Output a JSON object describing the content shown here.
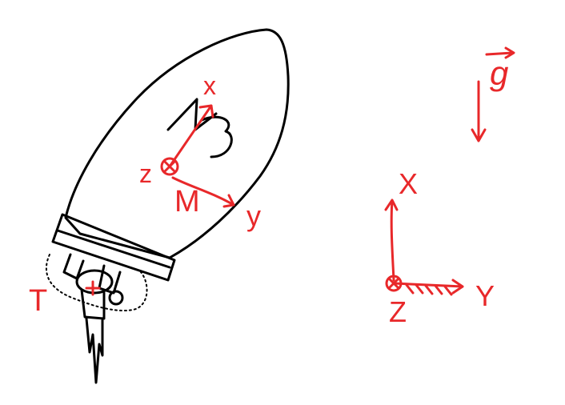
{
  "body_frame": {
    "x_label": "x",
    "y_label": "y",
    "z_label": "z",
    "moment_label": "M",
    "body_name": "N3"
  },
  "thrust_label": "T",
  "gravity_label": "g",
  "inertial_frame": {
    "x_label": "X",
    "y_label": "Y",
    "z_label": "Z"
  },
  "colors": {
    "annotation": "#e8282a",
    "outline": "#000000",
    "background": "#ffffff"
  }
}
